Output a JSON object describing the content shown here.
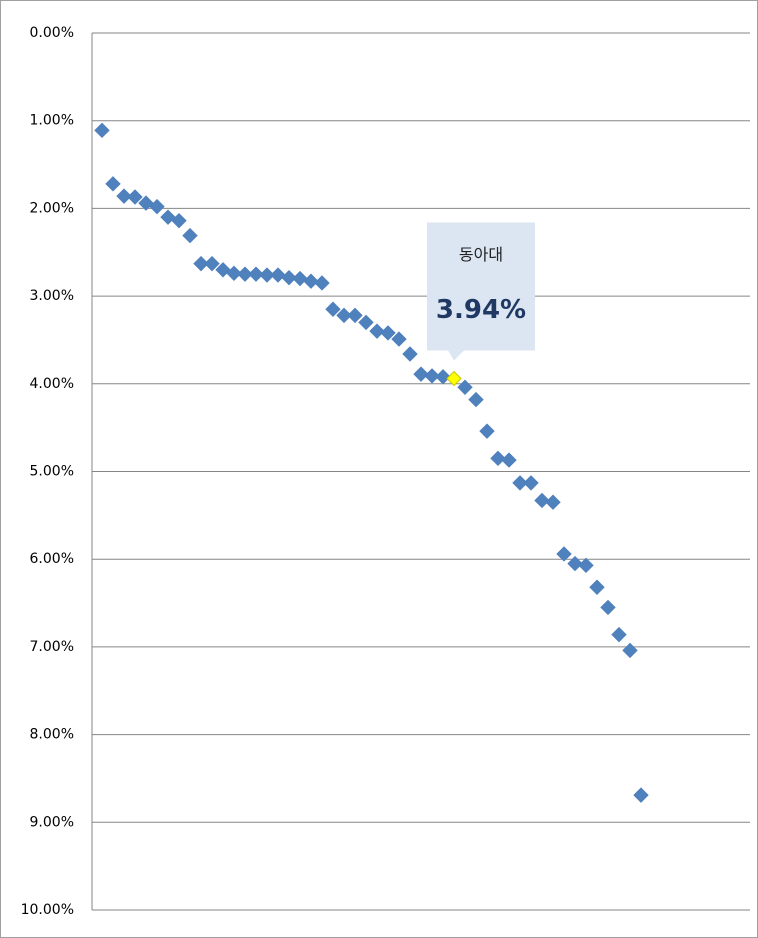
{
  "chart_data": {
    "type": "scatter",
    "y_inverted": true,
    "ylim": [
      0,
      10
    ],
    "yticks": [
      {
        "value": 0,
        "label": "0.00%"
      },
      {
        "value": 1,
        "label": "1.00%"
      },
      {
        "value": 2,
        "label": "2.00%"
      },
      {
        "value": 3,
        "label": "3.00%"
      },
      {
        "value": 4,
        "label": "4.00%"
      },
      {
        "value": 5,
        "label": "5.00%"
      },
      {
        "value": 6,
        "label": "6.00%"
      },
      {
        "value": 7,
        "label": "7.00%"
      },
      {
        "value": 8,
        "label": "8.00%"
      },
      {
        "value": 9,
        "label": "9.00%"
      },
      {
        "value": 10,
        "label": "10.00%"
      }
    ],
    "grid": true,
    "color": "#4f81bd",
    "highlight_color": "#ffff00",
    "callout_color": "#dce6f2",
    "categories": [
      null,
      null,
      null,
      null,
      null,
      null,
      null,
      null,
      null,
      null,
      null,
      null,
      null,
      null,
      null,
      null,
      null,
      null,
      null,
      null,
      null,
      null,
      null,
      null,
      null,
      null,
      null,
      null,
      null,
      null,
      null,
      null,
      "동아대",
      null,
      null,
      null,
      null,
      null,
      null,
      null,
      null,
      null,
      null,
      null,
      null,
      null,
      null,
      null,
      null,
      null
    ],
    "values": [
      1.11,
      1.72,
      1.86,
      1.87,
      1.94,
      1.98,
      2.1,
      2.14,
      2.31,
      2.63,
      2.63,
      2.7,
      2.74,
      2.75,
      2.75,
      2.76,
      2.76,
      2.79,
      2.8,
      2.83,
      2.85,
      3.15,
      3.22,
      3.22,
      3.3,
      3.4,
      3.42,
      3.49,
      3.66,
      3.89,
      3.91,
      3.92,
      3.94,
      4.04,
      4.18,
      4.54,
      4.85,
      4.87,
      5.13,
      5.13,
      5.33,
      5.35,
      5.94,
      6.05,
      6.07,
      6.32,
      6.55,
      6.86,
      7.04,
      8.69
    ],
    "value_labels": [
      null,
      null,
      null,
      null,
      null,
      null,
      null,
      null,
      null,
      null,
      null,
      null,
      null,
      null,
      null,
      null,
      null,
      null,
      null,
      null,
      null,
      null,
      null,
      null,
      null,
      null,
      null,
      null,
      null,
      null,
      null,
      null,
      "3.94%",
      null,
      null,
      null,
      null,
      null,
      null,
      null,
      null,
      null,
      null,
      null,
      null,
      null,
      null,
      null,
      null,
      null
    ]
  }
}
